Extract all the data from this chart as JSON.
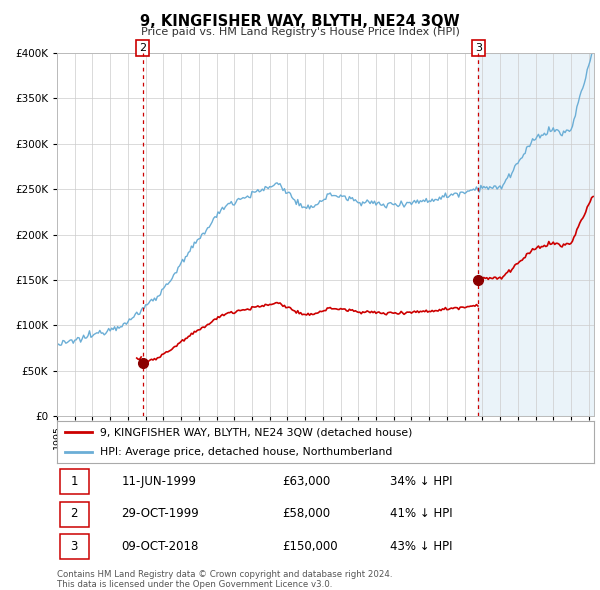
{
  "title": "9, KINGFISHER WAY, BLYTH, NE24 3QW",
  "subtitle": "Price paid vs. HM Land Registry's House Price Index (HPI)",
  "legend_line1": "9, KINGFISHER WAY, BLYTH, NE24 3QW (detached house)",
  "legend_line2": "HPI: Average price, detached house, Northumberland",
  "table_rows": [
    {
      "num": "1",
      "date": "11-JUN-1999",
      "price": "£63,000",
      "pct": "34% ↓ HPI"
    },
    {
      "num": "2",
      "date": "29-OCT-1999",
      "price": "£58,000",
      "pct": "41% ↓ HPI"
    },
    {
      "num": "3",
      "date": "09-OCT-2018",
      "price": "£150,000",
      "pct": "43% ↓ HPI"
    }
  ],
  "footer1": "Contains HM Land Registry data © Crown copyright and database right 2024.",
  "footer2": "This data is licensed under the Open Government Licence v3.0.",
  "hpi_color": "#6baed6",
  "hpi_shade_color": "#daeaf5",
  "price_color": "#cc0000",
  "marker_color": "#8b0000",
  "vline_color": "#cc0000",
  "background_color": "#ffffff",
  "grid_color": "#cccccc",
  "ylim": [
    0,
    400000
  ],
  "xlim_start": 1995.0,
  "xlim_end": 2025.3,
  "transaction1_x": 1999.44,
  "transaction1_y": 63000,
  "transaction2_x": 1999.83,
  "transaction2_y": 58000,
  "transaction3_x": 2018.77,
  "transaction3_y": 150000
}
